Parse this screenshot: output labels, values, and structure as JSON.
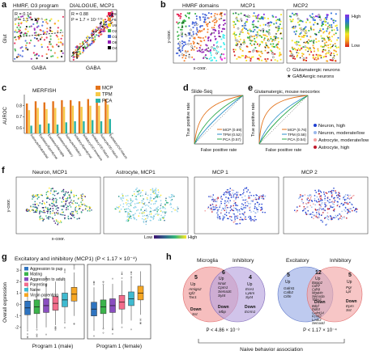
{
  "panel_labels": {
    "a": "a",
    "b": "b",
    "c": "c",
    "d": "d",
    "e": "e",
    "f": "f",
    "g": "g",
    "h": "h"
  },
  "panel_a": {
    "left_title": "HMRF, O3 program",
    "right_title": "DIALOGUE, MCP1",
    "left_stats": [
      "R = 0.14",
      "P = 1.1 × 10⁻⁵"
    ],
    "right_stats": [
      "R = 0.88",
      "P = 1.7 × 10⁻¹⁷²"
    ],
    "ylabel": "Glut",
    "xlabel_left": "GABA",
    "xlabel_right": "GABA",
    "legend": [
      "F9",
      "F6",
      "V9",
      "O2",
      "O1",
      "O8",
      "O4"
    ],
    "legend_colors": [
      "#e6194b",
      "#f58231",
      "#ffe119",
      "#3cb44b",
      "#4363d8",
      "#911eb4",
      "#000000"
    ]
  },
  "panel_b": {
    "titles": [
      "HMRF domains",
      "MCP1",
      "MCP2"
    ],
    "ylabel": "y-coor.",
    "xlabel": "x-coor.",
    "colorbar": {
      "high": "High",
      "low": "Low"
    },
    "legend": [
      "Glutamatergic neurons",
      "GABAergic neurons"
    ]
  },
  "panel_c": {
    "title": "MERFISH",
    "ylabel": "AUROC",
    "yticks": [
      "0.6",
      "0.7",
      "0.8"
    ],
    "legend": [
      "MCP",
      "TPM",
      "PCA"
    ],
    "colors": [
      "#e3731b",
      "#f7c948",
      "#2bb3a6"
    ],
    "chart_data": {
      "type": "bar",
      "categories": [
        "Astrocyte/Endothelial",
        "Excitatory/Ependymal",
        "Excitatory/Microglia",
        "Excitatory/Inhibitory",
        "Astrocyte/Inhibitory",
        "Inhibitory/Ependymal",
        "Inhibitory/OD Immature",
        "Inhibitory/OD Mature",
        "Astrocyte/OD Mature",
        "Excitatory/OD Mature"
      ],
      "series": [
        {
          "name": "MCP",
          "values": [
            0.82,
            0.84,
            0.83,
            0.84,
            0.85,
            0.85,
            0.84,
            0.86,
            0.85,
            0.86
          ]
        },
        {
          "name": "TPM",
          "values": [
            0.76,
            0.78,
            0.77,
            0.78,
            0.79,
            0.8,
            0.79,
            0.8,
            0.8,
            0.81
          ]
        },
        {
          "name": "PCA",
          "values": [
            0.62,
            0.63,
            0.64,
            0.63,
            0.65,
            0.66,
            0.66,
            0.67,
            0.66,
            0.68
          ]
        }
      ],
      "ylim": [
        0.55,
        0.9
      ]
    }
  },
  "panel_d": {
    "title": "Slide-Seq",
    "ylabel": "True positive rate",
    "xlabel": "False positive rate",
    "legend": [
      "MCP (0.69)",
      "TPM (0.52)",
      "PCA (0.57)"
    ],
    "colors": [
      "#e3731b",
      "#2b8fc9",
      "#2aa84a"
    ]
  },
  "panel_e": {
    "title": "Glutamatergic, mouse neocortex",
    "ylabel": "True positive rate",
    "xlabel": "False positive rate",
    "legend": [
      "MCP (0.76)",
      "TPM (0.58)",
      "PCA (0.54)"
    ],
    "colors": [
      "#e3731b",
      "#2b8fc9",
      "#2aa84a"
    ]
  },
  "right_legend": [
    "Neuron, high",
    "Neuron, moderate/low",
    "Astrocyte, moderate/low",
    "Astrocyte, high"
  ],
  "right_legend_colors": [
    "#1f3fd1",
    "#9ab8ec",
    "#f2a0a0",
    "#c0182b"
  ],
  "panel_f": {
    "titles": [
      "Neuron, MCP1",
      "Astrocyte, MCP1",
      "MCP 1",
      "MCP 2"
    ],
    "ylabel": "y-coor.",
    "xlabel": "x-coor.",
    "colorbar": {
      "low": "Low",
      "high": "High"
    }
  },
  "panel_g": {
    "title": "Excitatory and inhibitory (MCP1) (P < 1.17 × 10⁻⁴)",
    "ylabel": "Overall expression",
    "xlabels": [
      "Program 1 (male)",
      "Program 1 (female)"
    ],
    "yticks": [
      "-2",
      "-1",
      "0",
      "1",
      "2",
      "3"
    ],
    "legend": [
      "Aggression to pup",
      "Mating",
      "Aggression to adult",
      "Parenting",
      "Naive",
      "Virgin parenting"
    ],
    "colors": [
      "#2f74c0",
      "#3cb44b",
      "#8a4ec0",
      "#f36d8c",
      "#3fbad0",
      "#f6a623"
    ],
    "chart_data": {
      "type": "box",
      "groups": [
        "Program 1 (male)",
        "Program 1 (female)"
      ],
      "series": [
        {
          "name": "Aggression to pup",
          "median": [
            -0.3,
            -0.4
          ]
        },
        {
          "name": "Mating",
          "median": [
            -0.2,
            -0.2
          ]
        },
        {
          "name": "Aggression to adult",
          "median": [
            -0.1,
            -0.1
          ]
        },
        {
          "name": "Parenting",
          "median": [
            0.1,
            0.2
          ]
        },
        {
          "name": "Naive",
          "median": [
            0.4,
            0.5
          ]
        },
        {
          "name": "Virgin parenting",
          "median": [
            0.9,
            1.0
          ]
        }
      ]
    }
  },
  "panel_h": {
    "left": {
      "a": "Microglia",
      "b": "Inhibitory",
      "nleft": "5",
      "nmid": "6",
      "nright": "4",
      "up": "Up",
      "down": "Down",
      "left_genes": [
        "Amigo2",
        "Igf2",
        "Tac1"
      ],
      "left_down": [
        "Sst"
      ],
      "mid_genes": [
        "Nnat",
        "Cpm1",
        "Sema3c",
        "Syt4"
      ],
      "mid_down": [
        "Mbp"
      ],
      "right_genes": [
        "Ece1",
        "Ly6m",
        "Syt4"
      ],
      "right_down": [
        "Ecrm1"
      ],
      "pval": "P < 4.86 × 10⁻³"
    },
    "right": {
      "a": "Excitatory",
      "b": "Inhibitory",
      "nleft": "5",
      "nmid": "12",
      "nright": "5",
      "up": "Up",
      "down": "Down",
      "left_genes": [
        "Galnt1",
        "Calb2",
        "Cldn"
      ],
      "mid_genes": [
        "Baiap2",
        "Cdh7",
        "Cdh9",
        "Mgat4c",
        "Sema3a",
        "Thbs2"
      ],
      "mid_down": [
        "Bdnf",
        "Ddit4",
        "Galnt14",
        "Kcnk2",
        "Lmtk3",
        "Sema4d"
      ],
      "right_genes": [
        "Pgr",
        "Lpl"
      ],
      "right_down": [
        "Eprn",
        "Sst"
      ],
      "pval": "P < 1.17 × 10⁻⁴"
    },
    "footer": "Naive behavior association"
  }
}
